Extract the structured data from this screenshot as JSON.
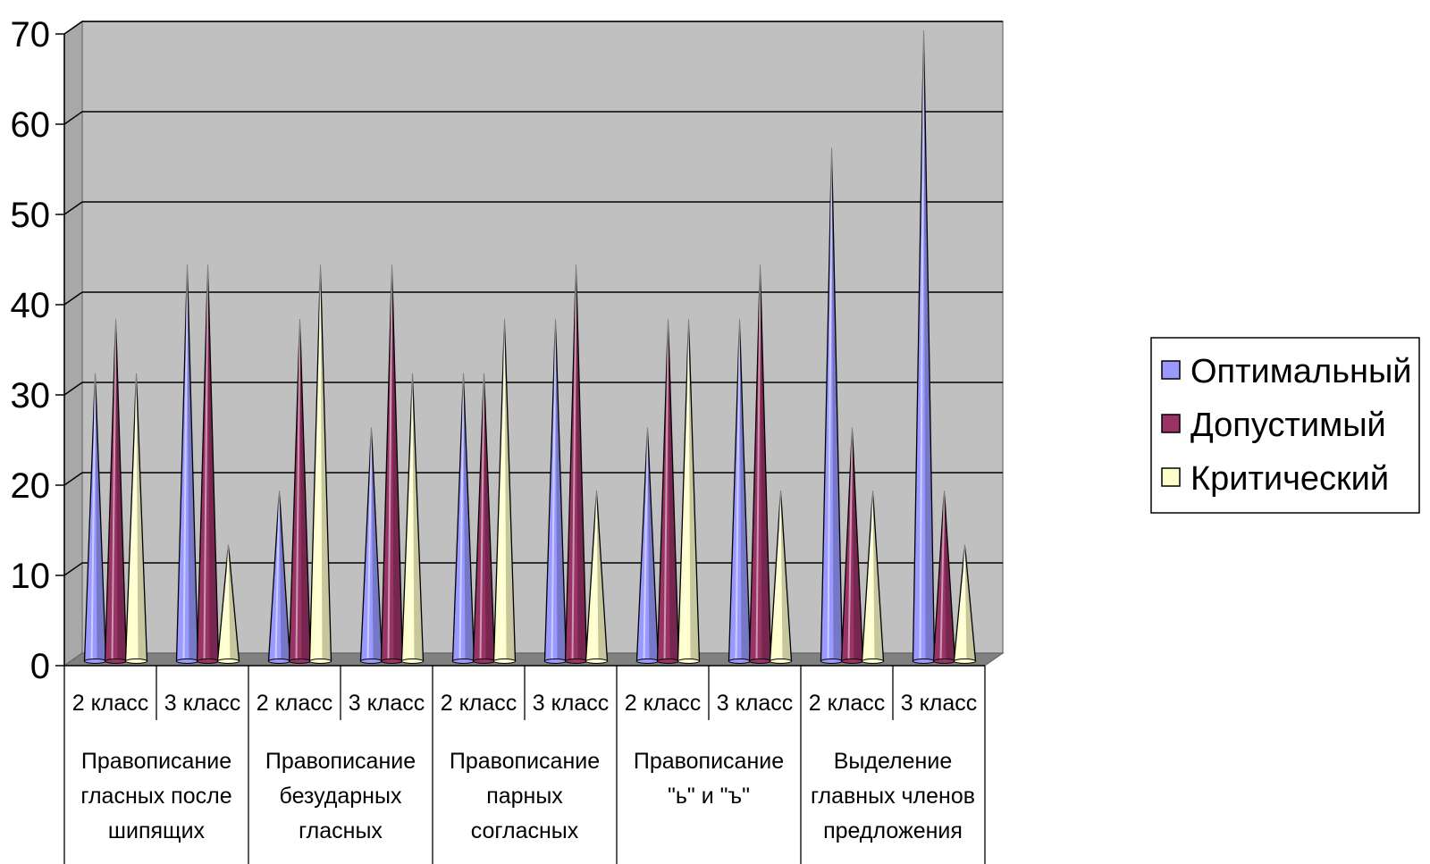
{
  "chart_data": {
    "type": "bar",
    "bar_shape": "cone",
    "yticks": [
      "0",
      "10",
      "20",
      "30",
      "40",
      "50",
      "60",
      "70"
    ],
    "ylim": [
      0,
      70
    ],
    "grid": true,
    "legend_position": "right",
    "groups": [
      {
        "label": [
          "Правописание",
          "гласных после",
          "шипящих"
        ]
      },
      {
        "label": [
          "Правописание",
          "безударных",
          "гласных"
        ]
      },
      {
        "label": [
          "Правописание",
          "парных",
          "согласных"
        ]
      },
      {
        "label": [
          "Правописание",
          "\"ь\" и \"ъ\""
        ]
      },
      {
        "label": [
          "Выделение",
          "главных членов",
          "предложения"
        ]
      }
    ],
    "categories": [
      "2 класс",
      "3 класс",
      "2 класс",
      "3 класс",
      "2 класс",
      "3 класс",
      "2 класс",
      "3 класс",
      "2 класс",
      "3 класс"
    ],
    "series": [
      {
        "name": "Оптимальный",
        "color": "#9999ff",
        "values": [
          31,
          43,
          18,
          25,
          31,
          37,
          25,
          37,
          56,
          69
        ]
      },
      {
        "name": "Допустимый",
        "color": "#993366",
        "values": [
          37,
          43,
          37,
          43,
          31,
          43,
          37,
          43,
          25,
          18
        ]
      },
      {
        "name": "Критический",
        "color": "#ffffcc",
        "values": [
          31,
          12,
          43,
          31,
          37,
          18,
          37,
          18,
          18,
          12
        ]
      }
    ]
  }
}
